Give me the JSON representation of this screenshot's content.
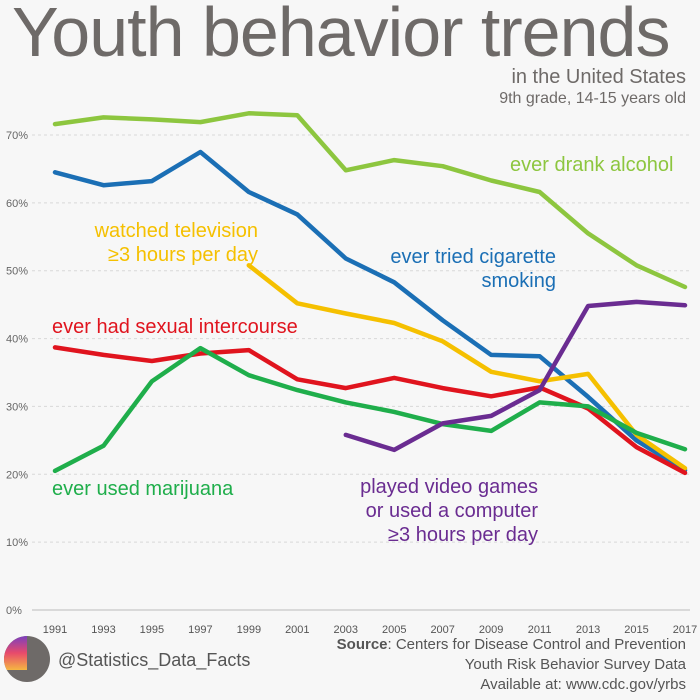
{
  "title": "Youth behavior trends",
  "subtitle1": "in the United States",
  "subtitle2": "9th grade, 14-15 years old",
  "handle": "@Statistics_Data_Facts",
  "source": {
    "label": "Source",
    "text": ": Centers for Disease Control and Prevention",
    "line2": "Youth Risk Behavior Survey Data",
    "line3": "Available at: www.cdc.gov/yrbs"
  },
  "chart_data": {
    "type": "line",
    "x": [
      1991,
      1993,
      1995,
      1997,
      1999,
      2001,
      2003,
      2005,
      2007,
      2009,
      2011,
      2013,
      2015,
      2017
    ],
    "ylim": [
      0,
      70
    ],
    "yticks": [
      "0%",
      "10%",
      "20%",
      "30%",
      "40%",
      "50%",
      "60%",
      "70%"
    ],
    "grid": true,
    "series": [
      {
        "name": "ever drank alcohol",
        "color": "#8dc63f",
        "values": [
          71.6,
          72.6,
          72.3,
          71.9,
          73.2,
          72.9,
          64.8,
          66.3,
          65.4,
          63.3,
          61.6,
          55.5,
          50.8,
          47.6
        ]
      },
      {
        "name": "ever tried cigarette smoking",
        "color": "#1b6fb5",
        "values": [
          64.5,
          62.6,
          63.2,
          67.5,
          61.6,
          58.3,
          51.8,
          48.3,
          42.7,
          37.6,
          37.4,
          31.4,
          25.0,
          20.6
        ]
      },
      {
        "name": "watched television ≥3 hours per day",
        "color": "#f5c000",
        "values": [
          null,
          null,
          null,
          null,
          50.8,
          45.2,
          43.7,
          42.3,
          39.6,
          35.1,
          33.7,
          34.8,
          25.8,
          20.9
        ]
      },
      {
        "name": "ever had sexual intercourse",
        "color": "#e0141e",
        "values": [
          38.7,
          37.6,
          36.7,
          37.8,
          38.3,
          34.0,
          32.7,
          34.2,
          32.7,
          31.5,
          32.8,
          29.7,
          24.0,
          20.2
        ]
      },
      {
        "name": "ever used marijuana",
        "color": "#1fae4b",
        "values": [
          20.5,
          24.2,
          33.7,
          38.6,
          34.6,
          32.4,
          30.6,
          29.2,
          27.4,
          26.4,
          30.6,
          30.0,
          26.1,
          23.7
        ]
      },
      {
        "name": "played video games or used a computer ≥3 hours per day",
        "color": "#6a2c91",
        "values": [
          null,
          null,
          null,
          null,
          null,
          null,
          25.8,
          23.6,
          27.5,
          28.6,
          32.4,
          44.8,
          45.4,
          44.9
        ]
      }
    ],
    "labels": {
      "alcohol": "ever drank alcohol",
      "cig1": "ever tried cigarette",
      "cig2": "smoking",
      "tv1": "watched television",
      "tv2": "≥3 hours per day",
      "sex": "ever had sexual intercourse",
      "mj": "ever used marijuana",
      "vg1": "played video games",
      "vg2": "or used a computer",
      "vg3": "≥3 hours per day"
    }
  }
}
